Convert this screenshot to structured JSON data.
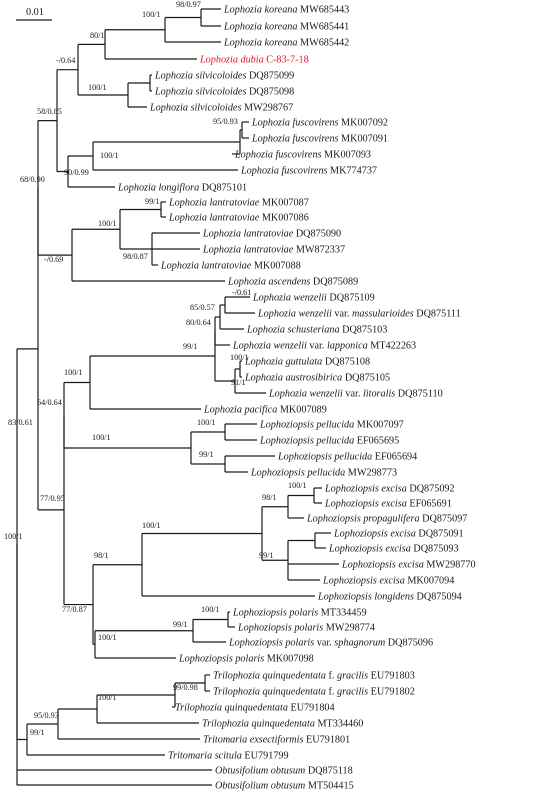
{
  "figure": {
    "scale_bar_label": "0.01",
    "highlight_color": "#e0182d",
    "line_color": "#1a1a1a",
    "background": "#ffffff"
  },
  "taxa": [
    {
      "id": "t01",
      "species": "Lophozia koreana",
      "accession": "MW685443"
    },
    {
      "id": "t02",
      "species": "Lophozia koreana",
      "accession": "MW685441"
    },
    {
      "id": "t03",
      "species": "Lophozia koreana",
      "accession": "MW685442"
    },
    {
      "id": "t04",
      "species": "Lophozia dubia",
      "accession": "C-83-7-18",
      "highlight": true
    },
    {
      "id": "t05",
      "species": "Lophozia silvicoloides",
      "accession": "DQ875099"
    },
    {
      "id": "t06",
      "species": "Lophozia silvicoloides",
      "accession": "DQ875098"
    },
    {
      "id": "t07",
      "species": "Lophozia silvicoloides",
      "accession": "MW298767"
    },
    {
      "id": "t08",
      "species": "Lophozia fuscovirens",
      "accession": "MK007092"
    },
    {
      "id": "t09",
      "species": "Lophozia fuscovirens",
      "accession": "MK007091"
    },
    {
      "id": "t10",
      "species": "Lophozia fuscovirens",
      "accession": "MK007093"
    },
    {
      "id": "t11",
      "species": "Lophozia fuscovirens",
      "accession": "MK774737"
    },
    {
      "id": "t12",
      "species": "Lophozia longiflora",
      "accession": "DQ875101"
    },
    {
      "id": "t13",
      "species": "Lophozia lantratoviae",
      "accession": "MK007087"
    },
    {
      "id": "t14",
      "species": "Lophozia lantratoviae",
      "accession": "MK007086"
    },
    {
      "id": "t15",
      "species": "Lophozia lantratoviae",
      "accession": "DQ875090"
    },
    {
      "id": "t16",
      "species": "Lophozia lantratoviae",
      "accession": "MW872337"
    },
    {
      "id": "t17",
      "species": "Lophozia lantratoviae",
      "accession": "MK007088"
    },
    {
      "id": "t18",
      "species": "Lophozia ascendens",
      "accession": "DQ875089"
    },
    {
      "id": "t19",
      "species": "Lophozia wenzelii",
      "accession": "DQ875109"
    },
    {
      "id": "t20",
      "species": "Lophozia wenzelii",
      "varlabel": "var.",
      "variety": "massularioides",
      "accession": "DQ875111"
    },
    {
      "id": "t21",
      "species": "Lophozia schusteriana",
      "accession": "DQ875103"
    },
    {
      "id": "t22",
      "species": "Lophozia wenzelii",
      "varlabel": "var.",
      "variety": "lapponica",
      "accession": "MT422263"
    },
    {
      "id": "t23",
      "species": "Lophozia guttulata",
      "accession": "DQ875108"
    },
    {
      "id": "t24",
      "species": "Lophozia austrosibirica",
      "accession": "DQ875105"
    },
    {
      "id": "t25",
      "species": "Lophozia wenzelii",
      "varlabel": "var.",
      "variety": "litoralis",
      "accession": "DQ875110"
    },
    {
      "id": "t26",
      "species": "Lophozia pacifica",
      "accession": "MK007089"
    },
    {
      "id": "t27",
      "species": "Lophoziopsis pellucida",
      "accession": "MK007097"
    },
    {
      "id": "t28",
      "species": "Lophoziopsis pellucida",
      "accession": "EF065695"
    },
    {
      "id": "t29",
      "species": "Lophoziopsis pellucida",
      "accession": "EF065694"
    },
    {
      "id": "t30",
      "species": "Lophoziopsis pellucida",
      "accession": "MW298773"
    },
    {
      "id": "t31",
      "species": "Lophoziopsis excisa",
      "accession": "DQ875092"
    },
    {
      "id": "t32",
      "species": "Lophoziopsis excisa",
      "accession": "EF065691"
    },
    {
      "id": "t33",
      "species": "Lophoziopsis propagulifera",
      "accession": "DQ875097"
    },
    {
      "id": "t34",
      "species": "Lophoziopsis excisa",
      "accession": "DQ875091"
    },
    {
      "id": "t35",
      "species": "Lophoziopsis excisa",
      "accession": "DQ875093"
    },
    {
      "id": "t36",
      "species": "Lophoziopsis excisa",
      "accession": "MW298770"
    },
    {
      "id": "t37",
      "species": "Lophoziopsis excisa",
      "accession": "MK007094"
    },
    {
      "id": "t38",
      "species": "Lophoziopsis longidens",
      "accession": "DQ875094"
    },
    {
      "id": "t39",
      "species": "Lophoziopsis polaris",
      "accession": "MT334459"
    },
    {
      "id": "t40",
      "species": "Lophoziopsis polaris",
      "accession": "MW298774"
    },
    {
      "id": "t41",
      "species": "Lophoziopsis polaris",
      "varlabel": "var.",
      "variety": "sphagnorum",
      "accession": "DQ875096"
    },
    {
      "id": "t42",
      "species": "Lophoziopsis polaris",
      "accession": "MK007098"
    },
    {
      "id": "t43",
      "species": "Trilophozia quinquedentata",
      "varlabel": "f.",
      "variety": "gracilis",
      "accession": "EU791803"
    },
    {
      "id": "t44",
      "species": "Trilophozia quinquedentata",
      "varlabel": "f.",
      "variety": "gracilis",
      "accession": "EU791802"
    },
    {
      "id": "t45",
      "species": "Trilophozia quinquedentata",
      "accession": "EU791804"
    },
    {
      "id": "t46",
      "species": "Trilophozia quinquedentata",
      "accession": "MT334460"
    },
    {
      "id": "t47",
      "species": "Tritomaria exsectiformis",
      "accession": "EU791801"
    },
    {
      "id": "t48",
      "species": "Tritomaria scitula",
      "accession": "EU791799"
    },
    {
      "id": "t49",
      "species": "Obtusifolium obtusum",
      "accession": "DQ875118"
    },
    {
      "id": "t50",
      "species": "Obtusifolium obtusum",
      "accession": "MT504415"
    }
  ],
  "support": [
    {
      "id": "n_koreana",
      "label": "98/0.97"
    },
    {
      "id": "n_kor_dub",
      "label": "100/1"
    },
    {
      "id": "n_kd",
      "label": "80/1"
    },
    {
      "id": "n_silv",
      "label": "100/1"
    },
    {
      "id": "n_ksv",
      "label": "-/0.64"
    },
    {
      "id": "n_A",
      "label": "58/0.85"
    },
    {
      "id": "n_fu2",
      "label": "95/0.93"
    },
    {
      "id": "n_fu",
      "label": "100/1"
    },
    {
      "id": "n_fl",
      "label": "90/0.99"
    },
    {
      "id": "n_I",
      "label": "68/0.90"
    },
    {
      "id": "n_la1",
      "label": "99/1"
    },
    {
      "id": "n_la2",
      "label": "98/0.87"
    },
    {
      "id": "n_la",
      "label": "100/1"
    },
    {
      "id": "n_lasc",
      "label": "-/0.69"
    },
    {
      "id": "n_W0",
      "label": "-/0.61"
    },
    {
      "id": "n_W1",
      "label": "85/0.57"
    },
    {
      "id": "n_W3",
      "label": "80/0.64"
    },
    {
      "id": "n_W4",
      "label": "99/1"
    },
    {
      "id": "n_G1",
      "label": "100/1"
    },
    {
      "id": "n_G2",
      "label": "91/1"
    },
    {
      "id": "n_Wp",
      "label": "100/1"
    },
    {
      "id": "n_P1",
      "label": "100/1"
    },
    {
      "id": "n_P2",
      "label": "99/1"
    },
    {
      "id": "n_P",
      "label": "100/1"
    },
    {
      "id": "n_M",
      "label": "64/0.64"
    },
    {
      "id": "n_E1",
      "label": "100/1"
    },
    {
      "id": "n_E2",
      "label": "98/1"
    },
    {
      "id": "n_E4",
      "label": "99/1"
    },
    {
      "id": "n_E",
      "label": "100/1"
    },
    {
      "id": "n_EL",
      "label": "98/1"
    },
    {
      "id": "n_Q1",
      "label": "100/1"
    },
    {
      "id": "n_Q2",
      "label": "99/1"
    },
    {
      "id": "n_Q",
      "label": "100/1"
    },
    {
      "id": "n_S",
      "label": "77/0.87"
    },
    {
      "id": "n_L",
      "label": "77/0.95"
    },
    {
      "id": "n_Tr1",
      "label": "99/0.98"
    },
    {
      "id": "n_Tr2",
      "label": "100/1"
    },
    {
      "id": "n_Tr",
      "label": "95/0.93"
    },
    {
      "id": "n_T",
      "label": "99/1"
    },
    {
      "id": "n_In",
      "label": "100/1"
    },
    {
      "id": "n_U",
      "label": "83/0.61"
    }
  ]
}
